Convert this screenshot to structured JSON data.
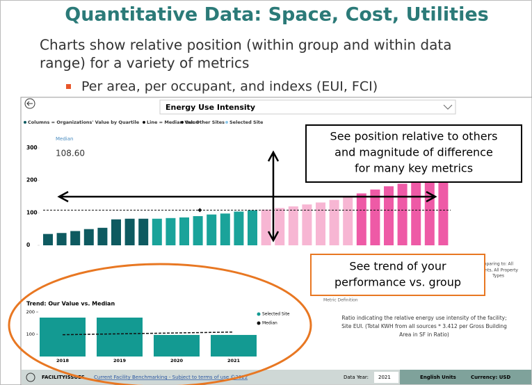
{
  "slide": {
    "title": "Quantitative Data: Space, Cost, Utilities",
    "body_lines": [
      "Charts show relative position (within group and within data",
      "range) for a variety of metrics"
    ],
    "bullet": "Per area, per occupant, and indexs (EUI, FCI)"
  },
  "dashboard": {
    "metric": "Energy Use Intensity",
    "legend": [
      "Columns = Organizations' Value by Quartile",
      "Line = Median Value",
      "Our Other Sites",
      "Selected Site"
    ],
    "median_title": "Median",
    "comparing_lines": [
      "mparing to: All",
      "pants, All Property",
      "Types"
    ],
    "definition_title": "Metric Definition",
    "definition_lines": [
      "Ratio indicating the relative energy use intensity of the facility;",
      "Site EUI. (Total KWH from all sources * 3.412 per Gross Building",
      "Area in SF in Ratio)"
    ],
    "footer": {
      "brand": "FACILITYISSUES",
      "link": "Current Facility Benchmarking - Subject to terms of use ©2022",
      "year_label": "Data Year:",
      "year": "2021",
      "units": "English Units",
      "currency": "Currency: USD"
    }
  },
  "callouts": {
    "position_lines": [
      "See position relative to others",
      "and magnitude of difference",
      "for many key metrics"
    ],
    "trend_lines": [
      "See trend of your",
      "performance vs. group"
    ]
  },
  "chart_data": [
    {
      "type": "bar",
      "values": [
        35,
        38,
        44,
        50,
        54,
        80,
        82,
        82,
        82,
        84,
        86,
        90,
        95,
        98,
        104,
        108,
        110,
        115,
        120,
        126,
        132,
        140,
        148,
        160,
        172,
        182,
        190,
        195,
        196,
        196
      ],
      "colors": [
        "#0e5a60",
        "#0e5a60",
        "#0e5a60",
        "#0e5a60",
        "#0e5a60",
        "#0e5a60",
        "#0e5a60",
        "#0e5a60",
        "#1aa39a",
        "#1aa39a",
        "#1aa39a",
        "#1aa39a",
        "#1aa39a",
        "#1aa39a",
        "#1aa39a",
        "#1aa39a",
        "#f7b6d3",
        "#f7b6d3",
        "#f7b6d3",
        "#f7b6d3",
        "#f7b6d3",
        "#f7b6d3",
        "#f7b6d3",
        "#ee5aa6",
        "#ee5aa6",
        "#ee5aa6",
        "#ee5aa6",
        "#ee5aa6",
        "#ee5aa6",
        "#ee5aa6"
      ],
      "median": {
        "value": 108.6,
        "label": "108.60"
      },
      "other_sites": [
        108.6
      ],
      "ylim": [
        0,
        330
      ],
      "yticks": [
        0,
        100,
        200,
        300
      ]
    },
    {
      "type": "bar",
      "title": "Trend: Our Value vs. Median",
      "categories": [
        "2018",
        "2019",
        "2020",
        "2021"
      ],
      "series": [
        {
          "name": "Selected Site",
          "color": "#139a92",
          "values": [
            175,
            175,
            97,
            97
          ]
        },
        {
          "name": "Median",
          "color": "#111111",
          "values": [
            98,
            102,
            106,
            110
          ]
        }
      ],
      "ylim": [
        0,
        200
      ],
      "yticks": [
        100,
        200
      ]
    }
  ]
}
